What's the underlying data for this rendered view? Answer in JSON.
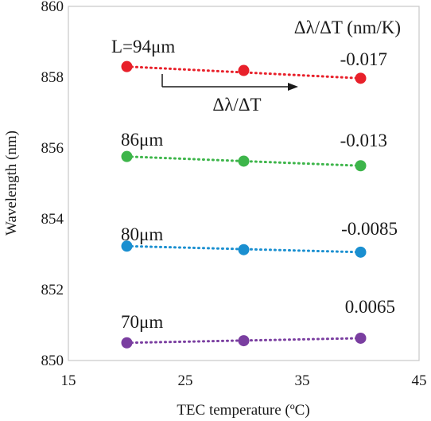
{
  "chart_data": {
    "type": "scatter",
    "xlabel": "TEC temperature (ºC)",
    "ylabel": "Wavelength (nm)",
    "xlim": [
      15,
      45
    ],
    "ylim": [
      850,
      860
    ],
    "xticks": [
      "15",
      "25",
      "35",
      "45"
    ],
    "yticks": [
      "850",
      "852",
      "854",
      "856",
      "858",
      "860"
    ],
    "grid": false,
    "legend_header": "Δλ/ΔT (nm/K)",
    "arrow_label": "Δλ/ΔT",
    "series": [
      {
        "name": "L=94μm",
        "color": "#e8202a",
        "x": [
          20,
          30,
          40
        ],
        "y": [
          858.3,
          858.19,
          857.97
        ],
        "slope_label": "-0.017"
      },
      {
        "name": "86μm",
        "color": "#3db54a",
        "x": [
          20,
          30,
          40
        ],
        "y": [
          855.76,
          855.63,
          855.5
        ],
        "slope_label": "-0.013"
      },
      {
        "name": "80μm",
        "color": "#1a8fd0",
        "x": [
          20,
          30,
          40
        ],
        "y": [
          853.23,
          853.13,
          853.06
        ],
        "slope_label": "-0.0085"
      },
      {
        "name": "70μm",
        "color": "#7a3ea0",
        "x": [
          20,
          30,
          40
        ],
        "y": [
          850.5,
          850.56,
          850.63
        ],
        "slope_label": "0.0065"
      }
    ]
  }
}
